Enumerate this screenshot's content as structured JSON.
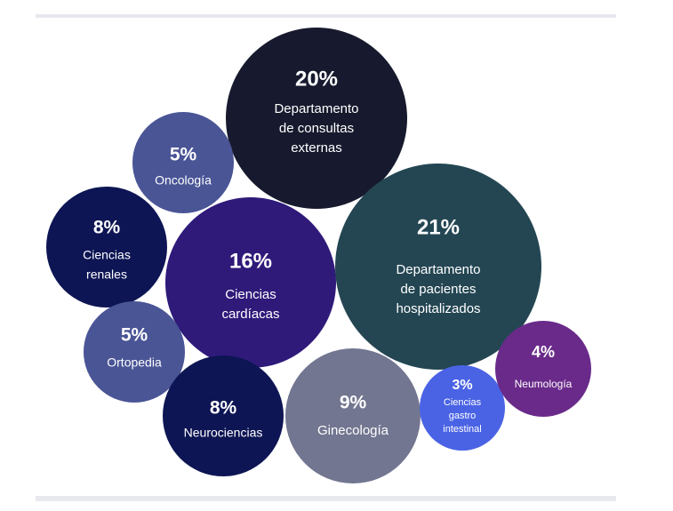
{
  "chart_data": {
    "type": "bubble",
    "title": "",
    "unit": "%",
    "bubbles": [
      {
        "name": "Departamento de consultas externas",
        "value": 20,
        "percent_label": "20%",
        "label_lines": [
          "Departamento",
          "de consultas",
          "externas"
        ],
        "color": "#171a2e"
      },
      {
        "name": "Oncología",
        "value": 5,
        "percent_label": "5%",
        "label_lines": [
          "Oncología"
        ],
        "color": "#4a5596"
      },
      {
        "name": "Ciencias renales",
        "value": 8,
        "percent_label": "8%",
        "label_lines": [
          "Ciencias",
          "renales"
        ],
        "color": "#0d1554"
      },
      {
        "name": "Ciencias cardíacas",
        "value": 16,
        "percent_label": "16%",
        "label_lines": [
          "Ciencias",
          "cardíacas"
        ],
        "color": "#2f1a7a"
      },
      {
        "name": "Departamento de pacientes hospitalizados",
        "value": 21,
        "percent_label": "21%",
        "label_lines": [
          "Departamento",
          "de pacientes",
          "hospitalizados"
        ],
        "color": "#244653"
      },
      {
        "name": "Ortopedia",
        "value": 5,
        "percent_label": "5%",
        "label_lines": [
          "Ortopedia"
        ],
        "color": "#4a5596"
      },
      {
        "name": "Neurociencias",
        "value": 8,
        "percent_label": "8%",
        "label_lines": [
          "Neurociencias"
        ],
        "color": "#0d1554"
      },
      {
        "name": "Ginecología",
        "value": 9,
        "percent_label": "9%",
        "label_lines": [
          "Ginecología"
        ],
        "color": "#727690"
      },
      {
        "name": "Ciencias gastro intestinal",
        "value": 3,
        "percent_label": "3%",
        "label_lines": [
          "Ciencias",
          "gastro",
          "intestinal"
        ],
        "color": "#4a63e4"
      },
      {
        "name": "Neumología",
        "value": 4,
        "percent_label": "4%",
        "label_lines": [
          "Neumología"
        ],
        "color": "#6a2a8a"
      }
    ]
  }
}
